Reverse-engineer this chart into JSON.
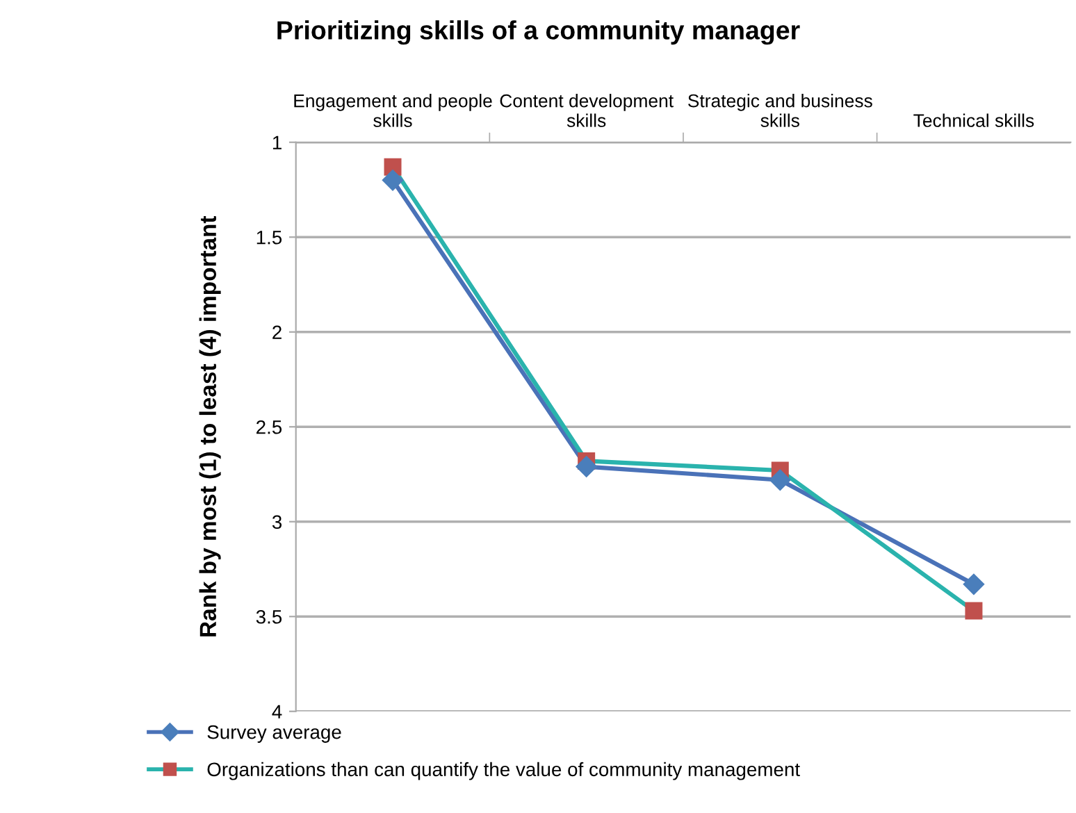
{
  "chart_data": {
    "type": "line",
    "title": "Prioritizing skills of a community manager",
    "ylabel": "Rank by most (1) to least (4) important",
    "categories": [
      "Engagement and people\nskills",
      "Content development\nskills",
      "Strategic and business\nskills",
      "Technical skills"
    ],
    "series": [
      {
        "name": "Survey average",
        "color": "#4a72b8",
        "marker": "diamond",
        "colors": [
          "#4a7ebb",
          "#4a7ebb",
          "#4a7ebb",
          "#4a7ebb"
        ],
        "values": [
          1.2,
          2.71,
          2.78,
          3.33
        ]
      },
      {
        "name": "Organizations than can quantify the value of community management",
        "color": "#2ab3ad",
        "marker": "square",
        "colors": [
          "#c0504d",
          "#c0504d",
          "#c0504d",
          "#c0504d"
        ],
        "values": [
          1.13,
          2.68,
          2.73,
          3.47
        ]
      }
    ],
    "ylim": [
      4,
      1
    ],
    "yticks": [
      1,
      1.5,
      2,
      2.5,
      3,
      3.5,
      4
    ],
    "grid": "y",
    "legend": "bottom",
    "line_style": "solid"
  }
}
